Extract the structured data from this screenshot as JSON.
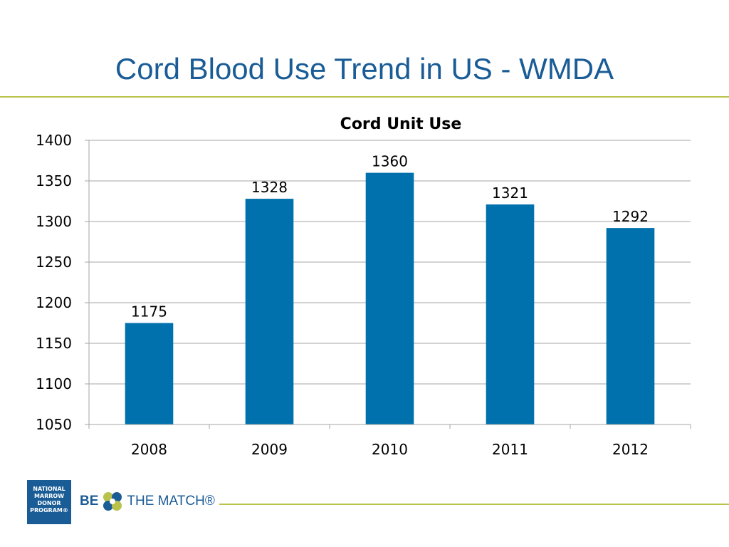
{
  "slide": {
    "title": "Cord Blood Use Trend in US - WMDA"
  },
  "logo_nmdp": {
    "lines": [
      "NATIONAL",
      "MARROW",
      "DONOR",
      "PROGRAM®"
    ]
  },
  "logo_btm": {
    "prefix": "BE",
    "suffix": "THE MATCH®"
  },
  "colors": {
    "title": "#1a5c96",
    "bar": "#0071ad",
    "accent_rule": "#b9c24a",
    "grid": "#a6a6a6"
  },
  "chart_data": {
    "type": "bar",
    "title": "Cord Unit Use",
    "categories": [
      "2008",
      "2009",
      "2010",
      "2011",
      "2012"
    ],
    "values": [
      1175,
      1328,
      1360,
      1321,
      1292
    ],
    "data_labels": [
      "1175",
      "1328",
      "1360",
      "1321",
      "1292"
    ],
    "ylim": [
      1050,
      1400
    ],
    "yticks": [
      1050,
      1100,
      1150,
      1200,
      1250,
      1300,
      1350,
      1400
    ],
    "grid": true,
    "legend": "none"
  }
}
